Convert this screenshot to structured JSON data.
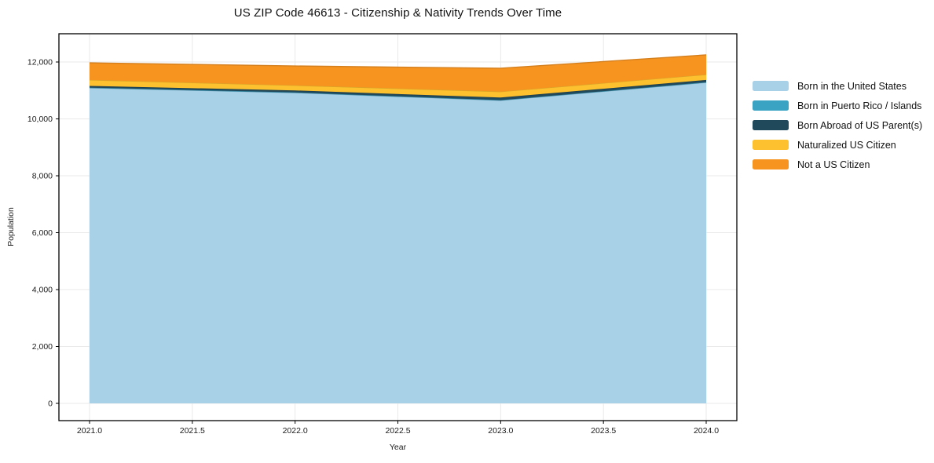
{
  "chart_data": {
    "type": "area",
    "stacked": true,
    "title": "US ZIP Code 46613 - Citizenship & Nativity Trends Over Time",
    "xlabel": "Year",
    "ylabel": "Population",
    "x": [
      2021,
      2022,
      2023,
      2024
    ],
    "series": [
      {
        "name": "Born in the United States",
        "color": "#a8d1e8",
        "values": [
          11090,
          10920,
          10650,
          11280
        ]
      },
      {
        "name": "Born in Puerto Rico / Islands",
        "color": "#3aa2c3",
        "values": [
          10,
          10,
          10,
          10
        ]
      },
      {
        "name": "Born Abroad of US Parent(s)",
        "color": "#21495c",
        "values": [
          60,
          70,
          90,
          80
        ]
      },
      {
        "name": "Naturalized US Citizen",
        "color": "#fdc02f",
        "values": [
          210,
          180,
          210,
          190
        ]
      },
      {
        "name": "Not a US Citizen",
        "color": "#f79420",
        "values": [
          600,
          680,
          820,
          690
        ]
      }
    ],
    "stack_totals": [
      11970,
      11860,
      11780,
      12250
    ],
    "xticks": [
      "2021.0",
      "2021.5",
      "2022.0",
      "2022.5",
      "2023.0",
      "2023.5",
      "2024.0"
    ],
    "yticks": [
      0,
      2000,
      4000,
      6000,
      8000,
      10000,
      12000
    ],
    "xlim": [
      2020.851,
      2024.149
    ],
    "ylim": [
      -607,
      12993
    ],
    "grid": true,
    "grid_color": "#e9e9e9",
    "spine_color": "#000000",
    "legend_position": "right"
  }
}
